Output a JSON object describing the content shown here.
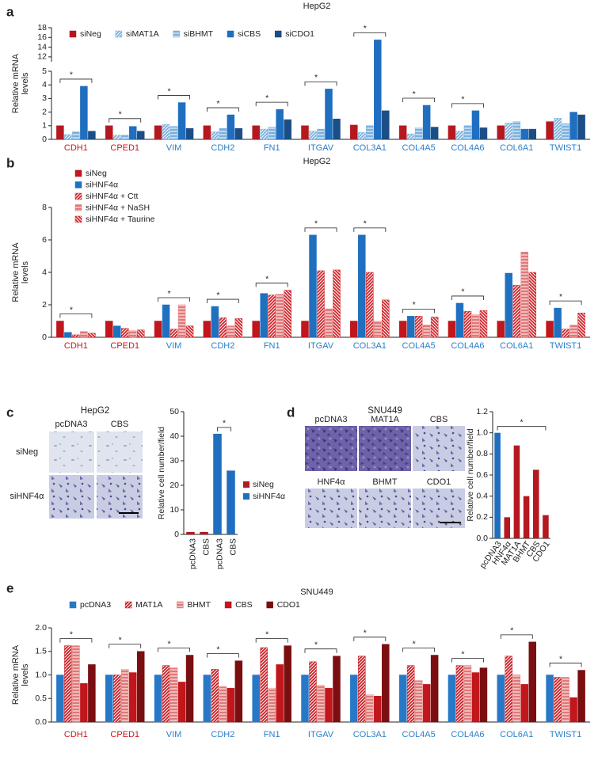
{
  "chart_data": [
    {
      "type": "grouped-bar",
      "panel": "a",
      "title": "HepG2",
      "ylabel": [
        "Relative mRNA",
        "levels"
      ],
      "categories": [
        "CDH1",
        "CPED1",
        "VIM",
        "CDH2",
        "FN1",
        "ITGAV",
        "COL3A1",
        "COL4A5",
        "COL4A6",
        "COL6A1",
        "TWIST1"
      ],
      "category_colors": [
        "#c8161d",
        "#c8161d",
        "#2a7fc9",
        "#2a7fc9",
        "#2a7fc9",
        "#2a7fc9",
        "#2a7fc9",
        "#2a7fc9",
        "#2a7fc9",
        "#2a7fc9",
        "#2a7fc9"
      ],
      "series": [
        {
          "name": "siNeg",
          "color": "#b5181f",
          "values": [
            1.0,
            1.0,
            1.0,
            1.0,
            1.0,
            1.0,
            1.05,
            1.0,
            1.0,
            1.0,
            1.3
          ]
        },
        {
          "name": "siMAT1A",
          "color": "#7ab0de",
          "pattern": "diag",
          "values": [
            0.35,
            0.3,
            1.1,
            0.55,
            0.75,
            0.6,
            0.5,
            0.4,
            0.6,
            1.2,
            1.55
          ]
        },
        {
          "name": "siBHMT",
          "color": "#7ab0de",
          "pattern": "hline",
          "values": [
            0.55,
            0.3,
            0.95,
            0.8,
            0.9,
            0.75,
            1.0,
            0.85,
            1.0,
            1.3,
            1.15
          ]
        },
        {
          "name": "siCBS",
          "color": "#1f6ebf",
          "values": [
            3.9,
            0.95,
            2.7,
            1.8,
            2.2,
            3.7,
            15.5,
            2.5,
            2.1,
            0.75,
            2.0
          ]
        },
        {
          "name": "siCDO1",
          "color": "#1b4e86",
          "values": [
            0.6,
            0.6,
            0.8,
            0.8,
            1.45,
            1.5,
            2.1,
            0.9,
            0.85,
            0.75,
            1.8
          ]
        }
      ],
      "ylim": [
        0,
        18
      ],
      "ybreak": [
        5,
        11
      ],
      "yticks": [
        0,
        1,
        2,
        3,
        4,
        5,
        12,
        14,
        16,
        18
      ],
      "annotations": [
        "*",
        "*",
        "*",
        "*",
        "*",
        "*",
        "*",
        "*",
        "*",
        null,
        null
      ],
      "legend": "top-left"
    },
    {
      "type": "grouped-bar",
      "panel": "b",
      "title": "HepG2",
      "ylabel": [
        "Relative mRNA",
        "levels"
      ],
      "categories": [
        "CDH1",
        "CPED1",
        "VIM",
        "CDH2",
        "FN1",
        "ITGAV",
        "COL3A1",
        "COL4A5",
        "COL4A6",
        "COL6A1",
        "TWIST1"
      ],
      "category_colors": [
        "#c8161d",
        "#c8161d",
        "#2a7fc9",
        "#2a7fc9",
        "#2a7fc9",
        "#2a7fc9",
        "#2a7fc9",
        "#2a7fc9",
        "#2a7fc9",
        "#2a7fc9",
        "#2a7fc9"
      ],
      "series": [
        {
          "name": "siNeg",
          "color": "#c0161c",
          "values": [
            1.0,
            1.0,
            1.0,
            1.0,
            1.0,
            1.0,
            1.0,
            1.0,
            1.0,
            1.0,
            1.0
          ]
        },
        {
          "name": "siHNF4α",
          "color": "#2070c0",
          "values": [
            0.3,
            0.7,
            2.0,
            1.9,
            2.7,
            6.3,
            6.3,
            1.3,
            2.1,
            3.95,
            1.8
          ]
        },
        {
          "name": "siHNF4α + Ctt",
          "color": "#d0262c",
          "pattern": "diag",
          "values": [
            0.15,
            0.55,
            0.5,
            1.2,
            2.6,
            4.1,
            4.0,
            1.3,
            1.6,
            3.2,
            0.5
          ]
        },
        {
          "name": "siHNF4α + NaSH",
          "color": "#e07878",
          "pattern": "hline",
          "values": [
            0.35,
            0.4,
            2.0,
            0.7,
            2.65,
            1.75,
            1.0,
            0.75,
            1.4,
            5.25,
            0.75
          ]
        },
        {
          "name": "siHNF4α + Taurine",
          "color": "#d0262c",
          "pattern": "backdiag",
          "values": [
            0.25,
            0.45,
            0.7,
            1.15,
            2.9,
            4.15,
            2.3,
            1.25,
            1.65,
            4.0,
            1.5
          ]
        }
      ],
      "ylim": [
        0,
        8
      ],
      "yticks": [
        0,
        2,
        4,
        6,
        8
      ],
      "annotations": [
        "*",
        null,
        "*",
        "*",
        "*",
        "*",
        "*",
        "*",
        "*",
        null,
        "*"
      ],
      "legend": "top-left"
    },
    {
      "type": "bar",
      "panel": "c",
      "image_title": "HepG2",
      "image_columns": [
        "pcDNA3",
        "CBS"
      ],
      "image_rows": [
        "siNeg",
        "siHNF4α"
      ],
      "ylabel": "Relative cell number/field",
      "categories": [
        "pcDNA3",
        "CBS",
        "pcDNA3",
        "CBS"
      ],
      "series": [
        {
          "name": "siNeg",
          "color": "#b5181f",
          "values": [
            1,
            1,
            null,
            null
          ]
        },
        {
          "name": "siHNF4α",
          "color": "#1f6ebf",
          "values": [
            null,
            null,
            41,
            26
          ]
        }
      ],
      "ylim": [
        0,
        50
      ],
      "yticks": [
        0,
        10,
        20,
        30,
        40,
        50
      ],
      "annotation": "*",
      "legend": "right"
    },
    {
      "type": "bar",
      "panel": "d",
      "image_title": "SNU449",
      "image_labels": [
        "pcDNA3",
        "MAT1A",
        "CBS",
        "HNF4α",
        "BHMT",
        "CDO1"
      ],
      "ylabel": "Relative cell number/field",
      "categories": [
        "pcDNA3",
        "HNF4α",
        "MAT1A",
        "BHMT",
        "CBS",
        "CDO1"
      ],
      "values": [
        1.0,
        0.2,
        0.88,
        0.4,
        0.65,
        0.22
      ],
      "colors": [
        "#1f6ebf",
        "#b5181f",
        "#b5181f",
        "#b5181f",
        "#b5181f",
        "#b5181f"
      ],
      "ylim": [
        0,
        1.2
      ],
      "yticks": [
        {
          "value": 0,
          "label": "0.0"
        },
        0.2,
        0.4,
        0.6,
        0.8,
        {
          "value": 1,
          "label": "1.0"
        },
        1.2
      ],
      "annotation": "*"
    },
    {
      "type": "grouped-bar",
      "panel": "e",
      "title": "SNU449",
      "ylabel": [
        "Relative mRNA",
        "levels"
      ],
      "categories": [
        "CDH1",
        "CPED1",
        "VIM",
        "CDH2",
        "FN1",
        "ITGAV",
        "COL3A1",
        "COL4A5",
        "COL4A6",
        "COL6A1",
        "TWIST1"
      ],
      "category_colors": [
        "#c8161d",
        "#c8161d",
        "#2a7fc9",
        "#2a7fc9",
        "#2a7fc9",
        "#2a7fc9",
        "#2a7fc9",
        "#2a7fc9",
        "#2a7fc9",
        "#2a7fc9",
        "#2a7fc9"
      ],
      "series": [
        {
          "name": "pcDNA3",
          "color": "#2878c8",
          "values": [
            1.0,
            1.0,
            1.0,
            1.0,
            1.0,
            1.0,
            1.0,
            1.0,
            1.0,
            1.0,
            1.0
          ]
        },
        {
          "name": "MAT1A",
          "color": "#c81e24",
          "pattern": "diag",
          "values": [
            1.62,
            1.0,
            1.2,
            1.12,
            1.58,
            1.28,
            1.4,
            1.2,
            1.2,
            1.4,
            0.95
          ]
        },
        {
          "name": "BHMT",
          "color": "#e07878",
          "pattern": "hline",
          "values": [
            1.62,
            1.12,
            1.15,
            0.75,
            0.72,
            0.78,
            0.58,
            0.88,
            1.2,
            1.0,
            0.95
          ]
        },
        {
          "name": "CBS",
          "color": "#c0161c",
          "values": [
            0.82,
            1.05,
            0.85,
            0.72,
            1.22,
            0.72,
            0.55,
            0.8,
            1.05,
            0.8,
            0.52
          ]
        },
        {
          "name": "CDO1",
          "color": "#7a0e10",
          "values": [
            1.22,
            1.5,
            1.42,
            1.3,
            1.62,
            1.4,
            1.65,
            1.42,
            1.15,
            1.7,
            1.1
          ]
        }
      ],
      "ylim": [
        0,
        2
      ],
      "yticks": [
        {
          "value": 0,
          "label": "0.0"
        },
        0.5,
        {
          "value": 1,
          "label": "1.0"
        },
        1.5,
        {
          "value": 2,
          "label": "2.0"
        }
      ],
      "annotations": [
        "*",
        "*",
        "*",
        "*",
        "*",
        "*",
        "*",
        "*",
        "*",
        "*",
        "*"
      ],
      "legend": "top-left"
    }
  ]
}
